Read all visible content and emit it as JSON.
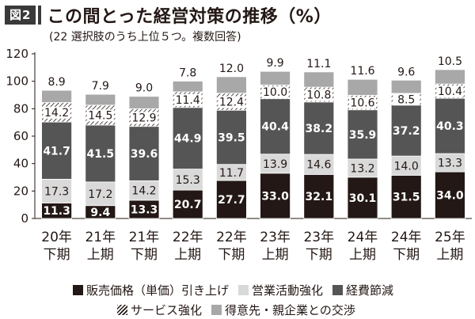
{
  "figure": {
    "badge": "図2",
    "title": "この間とった経営対策の推移（%）",
    "note": "(22 選択肢のうち上位５つ。複数回答)"
  },
  "chart_data": {
    "type": "bar",
    "stacked": true,
    "categories": [
      [
        "20年",
        "下期"
      ],
      [
        "21年",
        "上期"
      ],
      [
        "21年",
        "下期"
      ],
      [
        "22年",
        "上期"
      ],
      [
        "22年",
        "下期"
      ],
      [
        "23年",
        "上期"
      ],
      [
        "23年",
        "下期"
      ],
      [
        "24年",
        "上期"
      ],
      [
        "24年",
        "下期"
      ],
      [
        "25年",
        "上期"
      ]
    ],
    "ylim": [
      0,
      120
    ],
    "yticks": [
      0,
      20,
      40,
      60,
      80,
      100,
      120
    ],
    "legend_position": "bottom",
    "series": [
      {
        "name": "販売価格（単価）引き上げ",
        "color": "#231815",
        "pattern": "solid",
        "values": [
          11.3,
          9.4,
          13.3,
          20.7,
          27.7,
          33.0,
          32.1,
          30.1,
          31.5,
          34.0
        ]
      },
      {
        "name": "営業活動強化",
        "color": "#d9d9d9",
        "pattern": "solid",
        "values": [
          17.3,
          17.2,
          14.2,
          15.3,
          11.7,
          13.9,
          14.6,
          13.2,
          14.0,
          13.3
        ]
      },
      {
        "name": "経費節減",
        "color": "#555555",
        "pattern": "solid",
        "values": [
          41.7,
          41.5,
          39.6,
          44.9,
          39.5,
          40.4,
          38.2,
          35.9,
          37.2,
          40.3
        ]
      },
      {
        "name": "サービス強化",
        "color": "#ffffff",
        "pattern": "hatch",
        "values": [
          14.2,
          14.5,
          12.9,
          11.4,
          12.4,
          10.0,
          10.8,
          10.6,
          8.5,
          10.4
        ]
      },
      {
        "name": "得意先・親企業との交渉",
        "color": "#a8a8a8",
        "pattern": "solid",
        "values": [
          8.9,
          7.9,
          9.0,
          7.8,
          12.0,
          9.9,
          11.1,
          11.6,
          9.6,
          10.5
        ]
      }
    ],
    "labels": [
      [
        "11.3",
        "9.4",
        "13.3",
        "20.7",
        "27.7",
        "33.0",
        "32.1",
        "30.1",
        "31.5",
        "34.0"
      ],
      [
        "17.3",
        "17.2",
        "14.2",
        "15.3",
        "11.7",
        "13.9",
        "14.6",
        "13.2",
        "14.0",
        "13.3"
      ],
      [
        "41.7",
        "41.5",
        "39.6",
        "44.9",
        "39.5",
        "40.4",
        "38.2",
        "35.9",
        "37.2",
        "40.3"
      ],
      [
        "14.2",
        "14.5",
        "12.9",
        "11.4",
        "12.4",
        "10.0",
        "10.8",
        "10.6",
        "8.5",
        "10.4"
      ],
      [
        "8.9",
        "7.9",
        "9.0",
        "7.8",
        "12.0",
        "9.9",
        "11.1",
        "11.6",
        "9.6",
        "10.5"
      ]
    ]
  }
}
